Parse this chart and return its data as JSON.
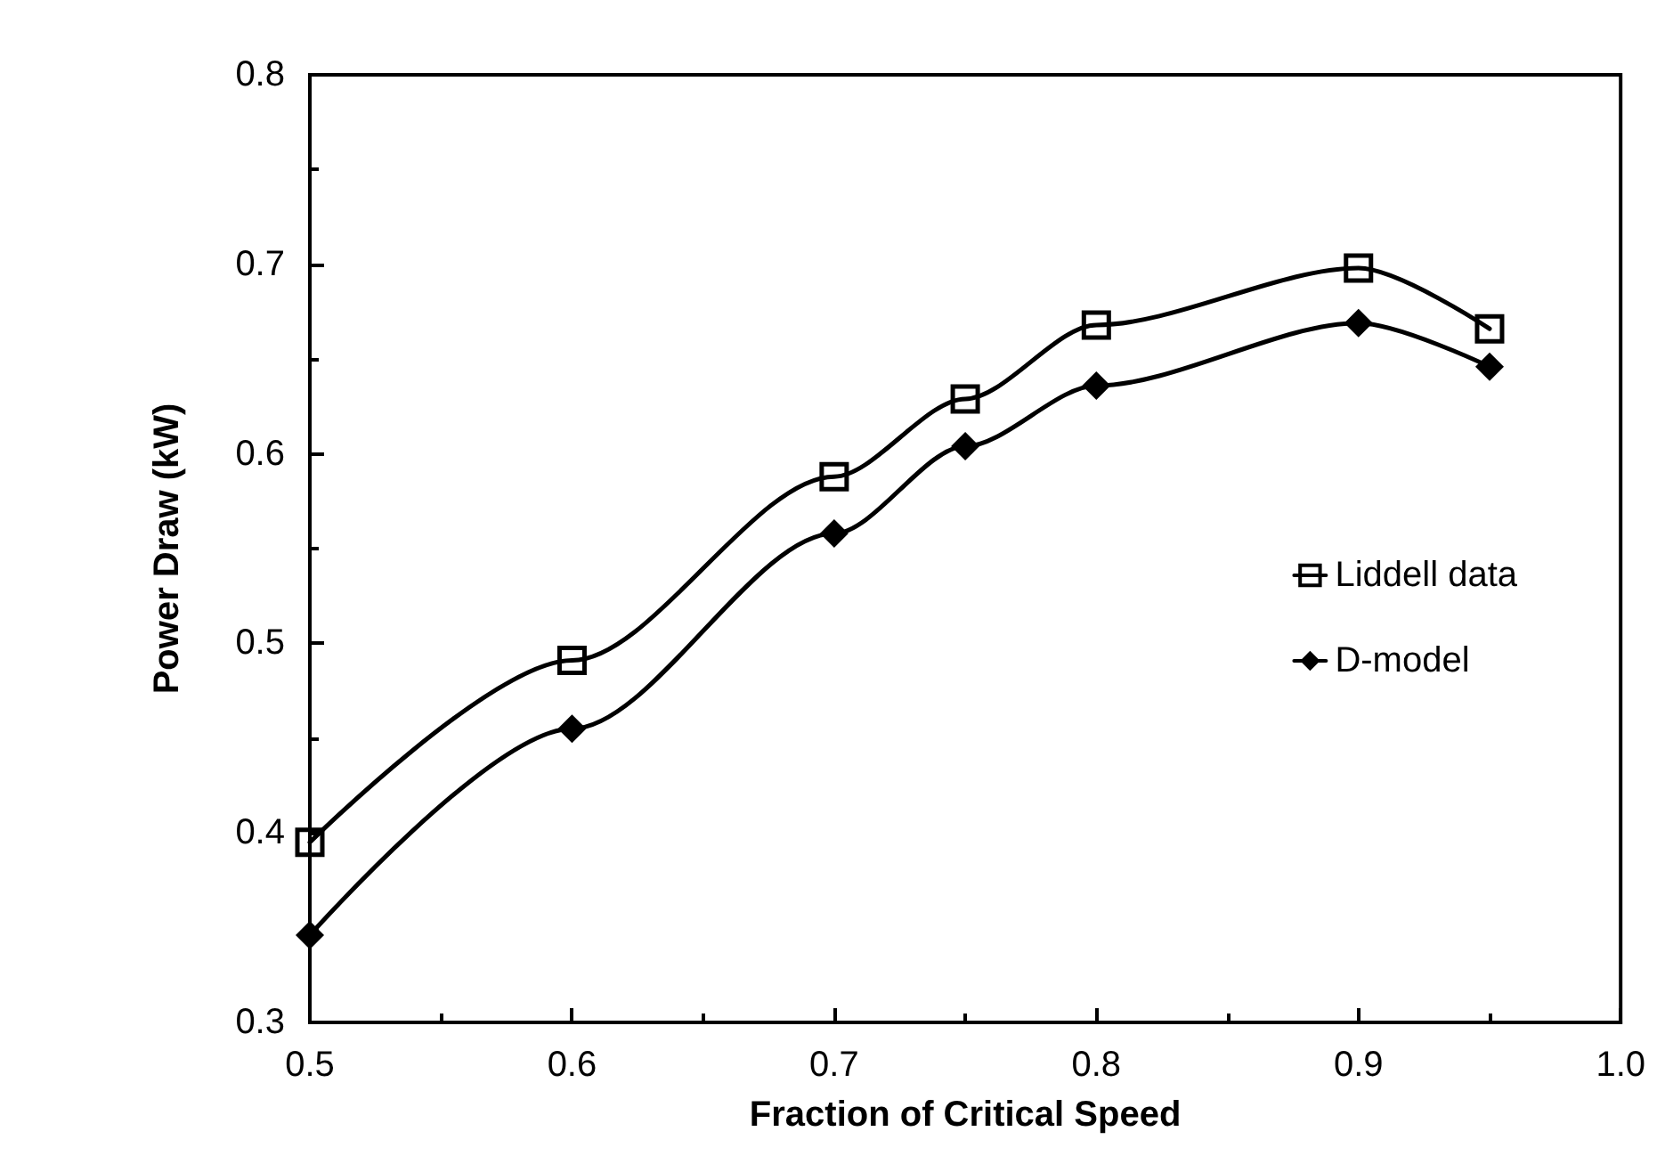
{
  "chart_data": {
    "type": "line",
    "xlabel": "Fraction of Critical Speed",
    "ylabel": "Power Draw (kW)",
    "xlim": [
      0.5,
      1.0
    ],
    "xticks": [
      {
        "value": 0.5,
        "label": "0.5"
      },
      {
        "value": 0.6,
        "label": "0.6"
      },
      {
        "value": 0.7,
        "label": "0.7"
      },
      {
        "value": 0.8,
        "label": "0.8"
      },
      {
        "value": 0.9,
        "label": "0.9"
      },
      {
        "value": 1.0,
        "label": "1.0"
      }
    ],
    "ylim": [
      0.3,
      0.8
    ],
    "yticks": [
      {
        "value": 0.3,
        "label": "0.3"
      },
      {
        "value": 0.4,
        "label": "0.4"
      },
      {
        "value": 0.5,
        "label": "0.5"
      },
      {
        "value": 0.6,
        "label": "0.6"
      },
      {
        "value": 0.7,
        "label": "0.7"
      },
      {
        "value": 0.8,
        "label": "0.8"
      }
    ],
    "x": [
      0.5,
      0.6,
      0.7,
      0.75,
      0.8,
      0.9,
      0.95
    ],
    "series": [
      {
        "name": "Liddell data",
        "color": "#000000",
        "marker": "square",
        "values": [
          0.395,
          0.491,
          0.588,
          0.629,
          0.668,
          0.698,
          0.666
        ]
      },
      {
        "name": "D-model",
        "color": "#000000",
        "marker": "diamond",
        "values": [
          0.346,
          0.455,
          0.558,
          0.604,
          0.636,
          0.669,
          0.646
        ]
      }
    ],
    "grid": false,
    "legend": "right",
    "line_style": "solid"
  }
}
